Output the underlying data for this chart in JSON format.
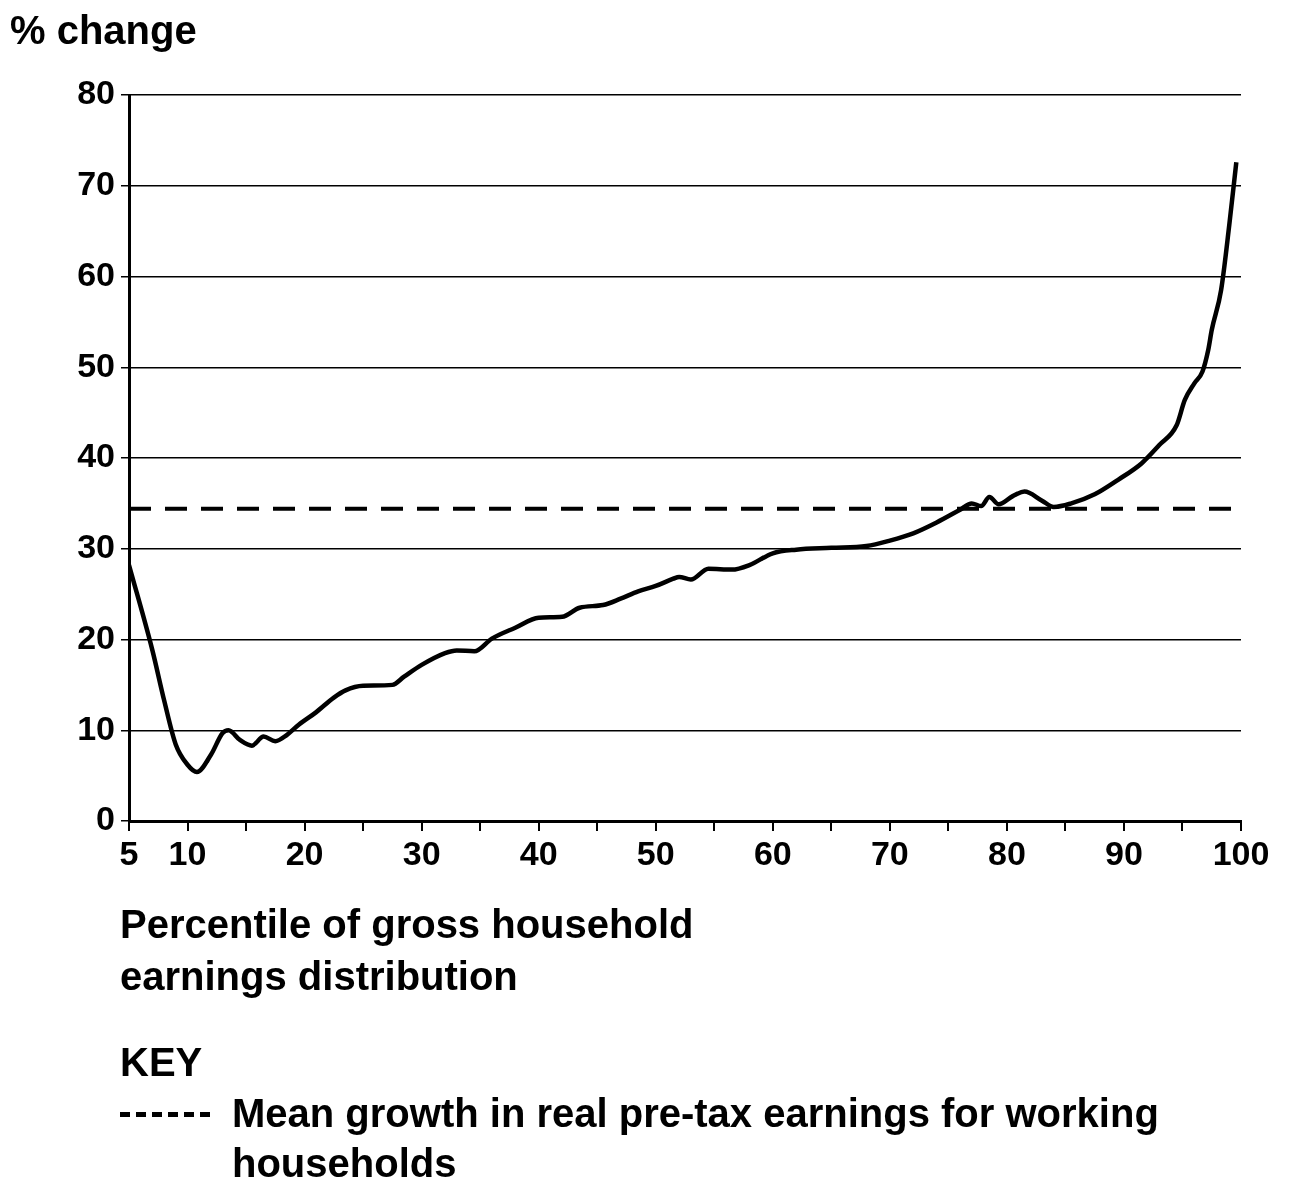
{
  "chart_data": {
    "type": "line",
    "ylabel": "% change",
    "xlabel": "Percentile of gross household earnings distribution",
    "legend_title": "KEY",
    "xlim": [
      5,
      100
    ],
    "xticks": [
      5,
      10,
      {
        "value": 15,
        "label": null
      },
      20,
      {
        "value": 25,
        "label": null
      },
      30,
      {
        "value": 35,
        "label": null
      },
      40,
      {
        "value": 45,
        "label": null
      },
      50,
      {
        "value": 55,
        "label": null
      },
      60,
      {
        "value": 65,
        "label": null
      },
      70,
      {
        "value": 75,
        "label": null
      },
      80,
      {
        "value": 85,
        "label": null
      },
      90,
      {
        "value": 95,
        "label": null
      },
      100
    ],
    "ylim": [
      0,
      80
    ],
    "yticks": [
      0,
      10,
      20,
      30,
      40,
      50,
      60,
      70,
      80
    ],
    "grid": "y",
    "marker": "none",
    "line_style": "solid",
    "series": [
      {
        "color": "#000000",
        "x": [
          5,
          7,
          8,
          9,
          10,
          10.8,
          12,
          13,
          13.5,
          14.5,
          15.5,
          16.5,
          17.5,
          18.5,
          19.5,
          21,
          22.5,
          23.5,
          25,
          27.5,
          28.5,
          30,
          32,
          33,
          34.5,
          36,
          38,
          40,
          42,
          43.5,
          45.5,
          47,
          48.5,
          50,
          51.5,
          52,
          53,
          54.5,
          56.5,
          58,
          60,
          62,
          65,
          68,
          70,
          72,
          74,
          76,
          77,
          77.8,
          78.5,
          79.3,
          80.5,
          81.5,
          83,
          84,
          85.5,
          87.5,
          89.5,
          91.5,
          93,
          94.5,
          95.2,
          96,
          96.7,
          97.2,
          97.5,
          98.3,
          99,
          99.6
        ],
        "values": [
          28.2,
          18.8,
          13.3,
          8.4,
          6.2,
          5.4,
          7.3,
          9.7,
          10.0,
          8.9,
          8.3,
          9.3,
          8.8,
          9.5,
          10.6,
          12.0,
          13.6,
          14.4,
          14.9,
          15.0,
          15.9,
          17.2,
          18.5,
          18.8,
          18.7,
          20.1,
          21.3,
          22.4,
          22.5,
          23.5,
          23.8,
          24.5,
          25.3,
          25.9,
          26.7,
          26.9,
          26.6,
          27.8,
          27.7,
          28.2,
          29.5,
          29.9,
          30.1,
          30.3,
          30.9,
          31.7,
          32.9,
          34.3,
          35.0,
          34.7,
          35.7,
          34.9,
          35.8,
          36.3,
          35.3,
          34.6,
          35.0,
          36.0,
          37.6,
          39.4,
          41.4,
          43.6,
          46.4,
          48.2,
          49.5,
          51.9,
          54.1,
          58.5,
          65.7,
          72.6
        ]
      }
    ],
    "ref_lines": [
      {
        "axis": "y",
        "value": 34.4,
        "label": "Mean growth in real pre-tax earnings for working households",
        "color": "#000000",
        "line_style": "dashed"
      }
    ]
  }
}
